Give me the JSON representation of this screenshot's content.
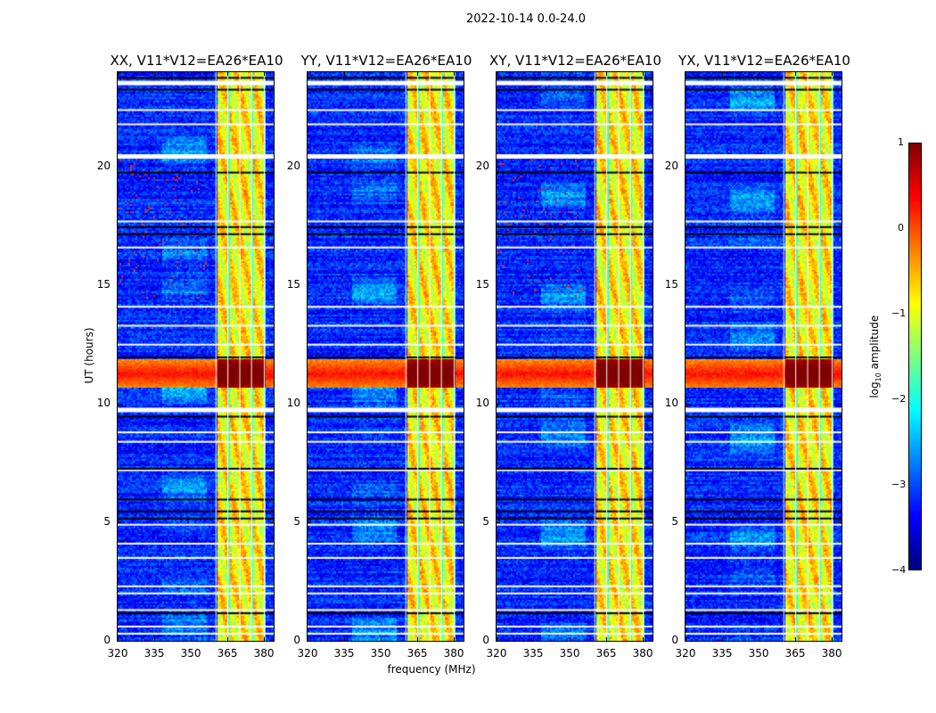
{
  "chart_data": {
    "type": "heatmap",
    "title": "2022-10-14 0.0-24.0",
    "xlabel": "frequency (MHz)",
    "ylabel": "UT (hours)",
    "xlim": [
      320,
      384
    ],
    "ylim": [
      0,
      24
    ],
    "xticks": [
      "320",
      "335",
      "350",
      "365",
      "380"
    ],
    "yticks": [
      "0",
      "5",
      "10",
      "15",
      "20"
    ],
    "colormap": "jet",
    "colorbar": {
      "label": "log10 amplitude",
      "label_main": "log",
      "label_sub": "10",
      "label_rest": " amplitude",
      "range": [
        -4,
        1
      ],
      "ticks": [
        "1",
        "0",
        "−1",
        "−2",
        "−3",
        "−4"
      ]
    },
    "panels": [
      {
        "title": "XX, V11*V12=EA26*EA10"
      },
      {
        "title": "YY, V11*V12=EA26*EA10"
      },
      {
        "title": "XY, V11*V12=EA26*EA10"
      },
      {
        "title": "YX, V11*V12=EA26*EA10"
      }
    ],
    "background_level": -3.2,
    "bright_band_mhz": [
      360.5,
      380
    ],
    "band_level": -0.8,
    "rfi_hours": [
      10.7,
      11.9
    ],
    "rfi_level": 0.6,
    "flagged_white_hours": [
      0.3,
      0.6,
      1.3,
      2.0,
      2.3,
      3.5,
      4.1,
      4.9,
      7.2,
      8.4,
      8.8,
      9.8,
      12.5,
      13.3,
      14.1,
      16.6,
      17.7,
      20.5,
      21.8,
      22.4,
      23.6
    ],
    "flagged_black_hours": [
      1.2,
      5.2,
      5.5,
      6.0,
      7.3,
      9.5,
      12.0,
      17.2,
      17.5,
      19.8,
      23.3,
      23.8
    ]
  }
}
